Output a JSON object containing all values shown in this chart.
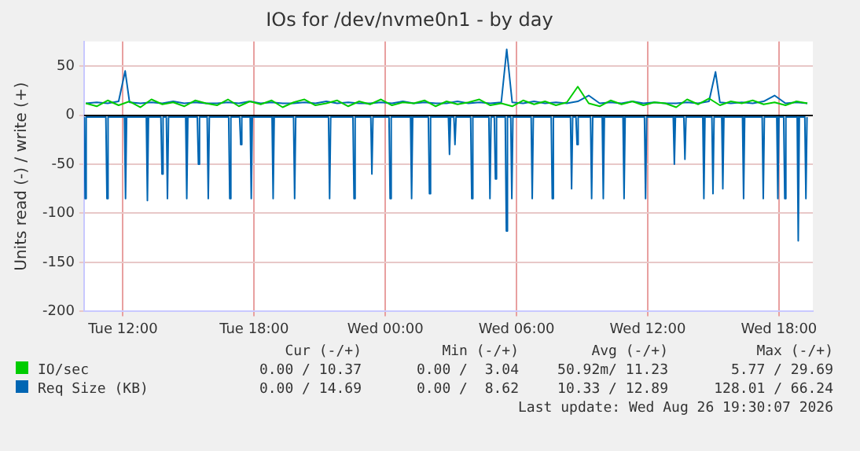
{
  "chart_data": {
    "type": "line",
    "title": "IOs for /dev/nvme0n1 - by day",
    "ylabel": "Units read (-) / write (+)",
    "xlim": [
      "2026-08-25T10:13",
      "2026-08-26T19:33"
    ],
    "ylim": [
      -200,
      75
    ],
    "xticks": [
      {
        "value": "2026-08-25T12:00",
        "label": "Tue 12:00"
      },
      {
        "value": "2026-08-25T18:00",
        "label": "Tue 18:00"
      },
      {
        "value": "2026-08-26T00:00",
        "label": "Wed 00:00"
      },
      {
        "value": "2026-08-26T06:00",
        "label": "Wed 06:00"
      },
      {
        "value": "2026-08-26T12:00",
        "label": "Wed 12:00"
      },
      {
        "value": "2026-08-26T18:00",
        "label": "Wed 18:00"
      }
    ],
    "yticks": [
      -200,
      -150,
      -100,
      -50,
      0,
      50
    ],
    "grid": true,
    "legend": "bottom",
    "ref_lines": [
      {
        "axis": "y",
        "value": 0,
        "color": "#000000"
      }
    ],
    "series": [
      {
        "name": "IO/sec",
        "color": "#00cc00",
        "x": [
          "2026-08-25T10:18",
          "2026-08-25T10:48",
          "2026-08-25T11:18",
          "2026-08-25T11:48",
          "2026-08-25T12:18",
          "2026-08-25T12:48",
          "2026-08-25T13:18",
          "2026-08-25T13:48",
          "2026-08-25T14:18",
          "2026-08-25T14:48",
          "2026-08-25T15:18",
          "2026-08-25T15:48",
          "2026-08-25T16:18",
          "2026-08-25T16:48",
          "2026-08-25T17:18",
          "2026-08-25T17:48",
          "2026-08-25T18:18",
          "2026-08-25T18:48",
          "2026-08-25T19:18",
          "2026-08-25T19:48",
          "2026-08-25T20:18",
          "2026-08-25T20:48",
          "2026-08-25T21:18",
          "2026-08-25T21:48",
          "2026-08-25T22:18",
          "2026-08-25T22:48",
          "2026-08-25T23:18",
          "2026-08-25T23:48",
          "2026-08-26T00:18",
          "2026-08-26T00:48",
          "2026-08-26T01:18",
          "2026-08-26T01:48",
          "2026-08-26T02:18",
          "2026-08-26T02:48",
          "2026-08-26T03:18",
          "2026-08-26T03:48",
          "2026-08-26T04:18",
          "2026-08-26T04:48",
          "2026-08-26T05:18",
          "2026-08-26T05:48",
          "2026-08-26T06:18",
          "2026-08-26T06:48",
          "2026-08-26T07:18",
          "2026-08-26T07:48",
          "2026-08-26T08:18",
          "2026-08-26T08:48",
          "2026-08-26T09:18",
          "2026-08-26T09:48",
          "2026-08-26T10:18",
          "2026-08-26T10:48",
          "2026-08-26T11:18",
          "2026-08-26T11:48",
          "2026-08-26T12:18",
          "2026-08-26T12:48",
          "2026-08-26T13:18",
          "2026-08-26T13:48",
          "2026-08-26T14:18",
          "2026-08-26T14:48",
          "2026-08-26T15:18",
          "2026-08-26T15:48",
          "2026-08-26T16:18",
          "2026-08-26T16:48",
          "2026-08-26T17:18",
          "2026-08-26T17:48",
          "2026-08-26T18:18",
          "2026-08-26T18:48",
          "2026-08-26T19:18"
        ],
        "values": [
          12,
          9,
          15,
          10,
          14,
          8,
          16,
          11,
          13,
          9,
          15,
          12,
          10,
          16,
          9,
          14,
          11,
          15,
          8,
          13,
          16,
          10,
          12,
          15,
          9,
          14,
          11,
          16,
          10,
          13,
          12,
          15,
          9,
          14,
          11,
          13,
          16,
          10,
          12,
          9,
          15,
          11,
          14,
          10,
          13,
          29,
          12,
          9,
          15,
          11,
          14,
          10,
          13,
          12,
          8,
          16,
          11,
          17,
          10,
          14,
          12,
          15,
          11,
          13,
          10,
          14,
          12
        ]
      },
      {
        "name": "Req Size (KB)",
        "color": "#0066b3",
        "x": [
          "2026-08-25T10:18",
          "2026-08-25T10:48",
          "2026-08-25T11:18",
          "2026-08-25T11:48",
          "2026-08-25T12:06",
          "2026-08-25T12:18",
          "2026-08-25T12:48",
          "2026-08-25T13:18",
          "2026-08-25T13:48",
          "2026-08-25T14:18",
          "2026-08-25T14:48",
          "2026-08-25T15:18",
          "2026-08-25T15:48",
          "2026-08-25T16:18",
          "2026-08-25T16:48",
          "2026-08-25T17:18",
          "2026-08-25T17:48",
          "2026-08-25T18:18",
          "2026-08-25T18:48",
          "2026-08-25T19:18",
          "2026-08-25T19:48",
          "2026-08-25T20:18",
          "2026-08-25T20:48",
          "2026-08-25T21:18",
          "2026-08-25T21:48",
          "2026-08-25T22:18",
          "2026-08-25T22:48",
          "2026-08-25T23:18",
          "2026-08-25T23:48",
          "2026-08-26T00:18",
          "2026-08-26T00:48",
          "2026-08-26T01:18",
          "2026-08-26T01:48",
          "2026-08-26T02:18",
          "2026-08-26T02:48",
          "2026-08-26T03:18",
          "2026-08-26T03:48",
          "2026-08-26T04:18",
          "2026-08-26T04:48",
          "2026-08-26T05:18",
          "2026-08-26T05:33",
          "2026-08-26T05:48",
          "2026-08-26T06:18",
          "2026-08-26T06:48",
          "2026-08-26T07:18",
          "2026-08-26T07:48",
          "2026-08-26T08:18",
          "2026-08-26T08:48",
          "2026-08-26T09:18",
          "2026-08-26T09:48",
          "2026-08-26T10:18",
          "2026-08-26T10:48",
          "2026-08-26T11:18",
          "2026-08-26T11:48",
          "2026-08-26T12:18",
          "2026-08-26T12:48",
          "2026-08-26T13:18",
          "2026-08-26T13:48",
          "2026-08-26T14:18",
          "2026-08-26T14:48",
          "2026-08-26T15:06",
          "2026-08-26T15:18",
          "2026-08-26T15:48",
          "2026-08-26T16:18",
          "2026-08-26T16:48",
          "2026-08-26T17:18",
          "2026-08-26T17:48",
          "2026-08-26T18:18",
          "2026-08-26T18:48",
          "2026-08-26T19:18"
        ],
        "values": [
          12,
          13,
          12,
          14,
          45,
          13,
          12,
          13,
          12,
          14,
          12,
          13,
          12,
          12,
          13,
          12,
          14,
          12,
          13,
          12,
          12,
          13,
          12,
          14,
          12,
          13,
          12,
          12,
          13,
          12,
          14,
          12,
          13,
          12,
          12,
          14,
          12,
          13,
          12,
          13,
          67,
          13,
          12,
          14,
          12,
          13,
          12,
          14,
          20,
          12,
          13,
          12,
          14,
          12,
          13,
          12,
          12,
          13,
          12,
          14,
          44,
          13,
          12,
          13,
          12,
          14,
          20,
          12,
          13,
          12
        ]
      },
      {
        "color": "#0066b3",
        "x": [
          "2026-08-25T10:14",
          "2026-08-25T10:16",
          "2026-08-25T10:19",
          "2026-08-25T11:13",
          "2026-08-25T11:16",
          "2026-08-25T11:19",
          "2026-08-25T12:04",
          "2026-08-25T12:07",
          "2026-08-25T12:10",
          "2026-08-25T13:04",
          "2026-08-25T13:07",
          "2026-08-25T13:10",
          "2026-08-25T13:44",
          "2026-08-25T13:47",
          "2026-08-25T13:50",
          "2026-08-25T13:59",
          "2026-08-25T14:02",
          "2026-08-25T14:05",
          "2026-08-25T14:52",
          "2026-08-25T14:55",
          "2026-08-25T14:58",
          "2026-08-25T15:24",
          "2026-08-25T15:27",
          "2026-08-25T15:30",
          "2026-08-25T15:51",
          "2026-08-25T15:54",
          "2026-08-25T15:57",
          "2026-08-25T16:50",
          "2026-08-25T16:53",
          "2026-08-25T16:56",
          "2026-08-25T17:20",
          "2026-08-25T17:23",
          "2026-08-25T17:26",
          "2026-08-25T17:49",
          "2026-08-25T17:52",
          "2026-08-25T17:55",
          "2026-08-25T18:49",
          "2026-08-25T18:52",
          "2026-08-25T18:55",
          "2026-08-25T19:48",
          "2026-08-25T19:51",
          "2026-08-25T19:54",
          "2026-08-25T21:24",
          "2026-08-25T21:27",
          "2026-08-25T21:30",
          "2026-08-25T22:31",
          "2026-08-25T22:34",
          "2026-08-25T22:37",
          "2026-08-25T23:20",
          "2026-08-25T23:23",
          "2026-08-25T23:26",
          "2026-08-26T00:10",
          "2026-08-26T00:13",
          "2026-08-26T00:16",
          "2026-08-26T01:09",
          "2026-08-26T01:12",
          "2026-08-26T01:15",
          "2026-08-26T01:58",
          "2026-08-26T02:01",
          "2026-08-26T02:04",
          "2026-08-26T02:53",
          "2026-08-26T02:56",
          "2026-08-26T02:59",
          "2026-08-26T03:08",
          "2026-08-26T03:11",
          "2026-08-26T03:14",
          "2026-08-26T03:54",
          "2026-08-26T03:57",
          "2026-08-26T04:00",
          "2026-08-26T04:44",
          "2026-08-26T04:47",
          "2026-08-26T04:50",
          "2026-08-26T04:59",
          "2026-08-26T05:02",
          "2026-08-26T05:05",
          "2026-08-26T05:29",
          "2026-08-26T05:32",
          "2026-08-26T05:35",
          "2026-08-26T05:44",
          "2026-08-26T05:47",
          "2026-08-26T05:50",
          "2026-08-26T06:40",
          "2026-08-26T06:43",
          "2026-08-26T06:46",
          "2026-08-26T07:35",
          "2026-08-26T07:38",
          "2026-08-26T07:41",
          "2026-08-26T08:28",
          "2026-08-26T08:31",
          "2026-08-26T08:34",
          "2026-08-26T08:43",
          "2026-08-26T08:46",
          "2026-08-26T08:49",
          "2026-08-26T09:23",
          "2026-08-26T09:26",
          "2026-08-26T09:29",
          "2026-08-26T09:55",
          "2026-08-26T09:58",
          "2026-08-26T10:01",
          "2026-08-26T10:52",
          "2026-08-26T10:55",
          "2026-08-26T10:58",
          "2026-08-26T11:51",
          "2026-08-26T11:54",
          "2026-08-26T11:57",
          "2026-08-26T13:10",
          "2026-08-26T13:13",
          "2026-08-26T13:16",
          "2026-08-26T13:39",
          "2026-08-26T13:42",
          "2026-08-26T13:45",
          "2026-08-26T14:31",
          "2026-08-26T14:34",
          "2026-08-26T14:37",
          "2026-08-26T14:56",
          "2026-08-26T14:59",
          "2026-08-26T15:02",
          "2026-08-26T15:23",
          "2026-08-26T15:26",
          "2026-08-26T15:29",
          "2026-08-26T16:20",
          "2026-08-26T16:23",
          "2026-08-26T16:26",
          "2026-08-26T17:14",
          "2026-08-26T17:17",
          "2026-08-26T17:20",
          "2026-08-26T17:54",
          "2026-08-26T17:57",
          "2026-08-26T18:00",
          "2026-08-26T18:13",
          "2026-08-26T18:16",
          "2026-08-26T18:19",
          "2026-08-26T18:50",
          "2026-08-26T18:53",
          "2026-08-26T18:56",
          "2026-08-26T19:11",
          "2026-08-26T19:14",
          "2026-08-26T19:17"
        ],
        "values": [
          -2,
          -85,
          -2,
          -2,
          -85,
          -2,
          -2,
          -85,
          -2,
          -2,
          -87,
          -2,
          -2,
          -60,
          -2,
          -2,
          -85,
          -2,
          -2,
          -85,
          -2,
          -2,
          -50,
          -2,
          -2,
          -85,
          -2,
          -2,
          -85,
          -2,
          -2,
          -30,
          -2,
          -2,
          -85,
          -2,
          -2,
          -85,
          -2,
          -2,
          -85,
          -2,
          -2,
          -85,
          -2,
          -2,
          -85,
          -2,
          -2,
          -60,
          -2,
          -2,
          -85,
          -2,
          -2,
          -85,
          -2,
          -2,
          -80,
          -2,
          -2,
          -40,
          -2,
          -2,
          -30,
          -2,
          -2,
          -85,
          -2,
          -2,
          -85,
          -2,
          -2,
          -65,
          -2,
          -2,
          -118,
          -2,
          -2,
          -85,
          -2,
          -2,
          -85,
          -2,
          -2,
          -85,
          -2,
          -2,
          -75,
          -2,
          -2,
          -30,
          -2,
          -2,
          -85,
          -2,
          -2,
          -85,
          -2,
          -2,
          -85,
          -2,
          -2,
          -85,
          -2,
          -2,
          -50,
          -2,
          -2,
          -45,
          -2,
          -2,
          -85,
          -2,
          -2,
          -80,
          -2,
          -2,
          -75,
          -2,
          -2,
          -85,
          -2,
          -2,
          -85,
          -2,
          -2,
          -85,
          -2,
          -2,
          -85,
          -2,
          -2,
          -128,
          -2,
          -2,
          -85,
          -2
        ]
      }
    ],
    "annotations": [
      "Cur (-/+)",
      "Min (-/+)",
      "Avg (-/+)",
      "Max (-/+)",
      "0.00 / 10.37",
      "0.00 /  3.04",
      "50.92m/ 11.23",
      "5.77 / 29.69",
      "0.00 / 14.69",
      "0.00 /  8.62",
      "10.33 / 12.89",
      "128.01 / 66.24",
      "Last update: Wed Aug 26 19:30:07 2026"
    ]
  }
}
